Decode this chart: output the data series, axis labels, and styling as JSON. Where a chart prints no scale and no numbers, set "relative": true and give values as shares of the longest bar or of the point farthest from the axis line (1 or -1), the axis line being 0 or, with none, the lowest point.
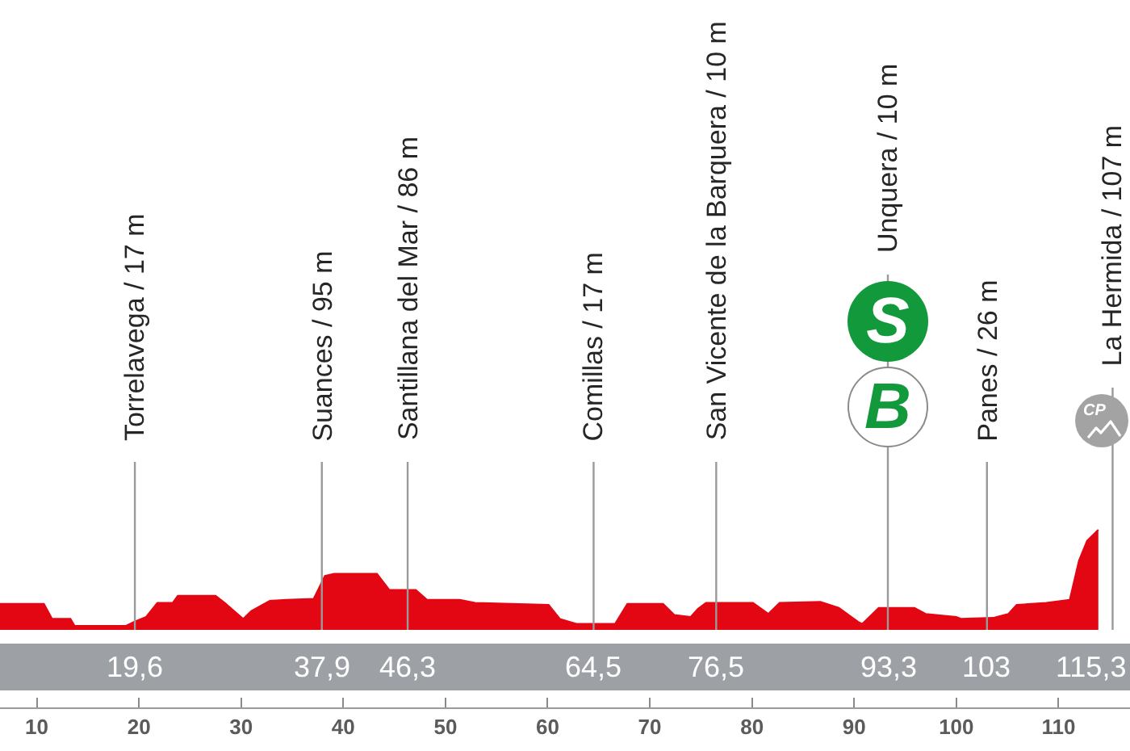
{
  "chart_data": {
    "type": "area",
    "relative": true,
    "x": [
      6.4,
      10.7,
      11.5,
      13.3,
      13.7,
      18.7,
      19.5,
      20.7,
      21.8,
      23.3,
      23.8,
      27.5,
      28.4,
      30.2,
      31.0,
      32.8,
      34.4,
      37.1,
      38.2,
      39.1,
      43.3,
      44.5,
      47.1,
      48.2,
      51.4,
      52.9,
      60.1,
      61.2,
      62.8,
      66.6,
      67.8,
      71.3,
      72.4,
      74.0,
      74.7,
      75.5,
      80.1,
      81.6,
      82.7,
      86.7,
      88.5,
      90.4,
      90.8,
      92.4,
      95.9,
      97.0,
      100.0,
      100.5,
      103.6,
      105.1,
      105.9,
      108.8,
      111.1,
      112.0,
      112.8,
      113.9
    ],
    "series": [
      {
        "color": "#e30613",
        "values": [
          0.26,
          0.26,
          0.11,
          0.11,
          0.04,
          0.04,
          0.08,
          0.13,
          0.27,
          0.27,
          0.34,
          0.34,
          0.27,
          0.11,
          0.19,
          0.29,
          0.3,
          0.31,
          0.54,
          0.56,
          0.56,
          0.4,
          0.4,
          0.3,
          0.3,
          0.27,
          0.25,
          0.11,
          0.06,
          0.06,
          0.26,
          0.26,
          0.15,
          0.13,
          0.21,
          0.27,
          0.27,
          0.16,
          0.27,
          0.28,
          0.22,
          0.08,
          0.06,
          0.22,
          0.22,
          0.16,
          0.13,
          0.11,
          0.12,
          0.16,
          0.25,
          0.27,
          0.3,
          0.69,
          0.89,
          1
        ]
      }
    ],
    "xlim": [
      6.4,
      117
    ],
    "xticks": [
      10,
      20,
      30,
      40,
      50,
      60,
      70,
      80,
      90,
      100,
      110
    ],
    "x2lim": [
      6.4,
      117
    ],
    "x2ticks": [
      {
        "value": 19.6,
        "label": "19,6"
      },
      {
        "value": 37.9,
        "label": "37,9"
      },
      {
        "value": 46.3,
        "label": "46,3"
      },
      {
        "value": 64.5,
        "label": "64,5"
      },
      {
        "value": 76.5,
        "label": "76,5"
      },
      {
        "value": 93.3,
        "label": "93,3"
      },
      103,
      {
        "value": 115.3,
        "label": "115,3"
      }
    ],
    "ref_lines": [
      {
        "axis": "x",
        "value": 19.6,
        "label": "Torrelavega / 17 m",
        "color": "#9a9a9a"
      },
      {
        "axis": "x",
        "value": 37.9,
        "label": "Suances / 95 m",
        "color": "#9a9a9a"
      },
      {
        "axis": "x",
        "value": 46.3,
        "label": "Santillana del Mar / 86 m",
        "color": "#9a9a9a"
      },
      {
        "axis": "x",
        "value": 64.5,
        "label": "Comillas / 17 m",
        "color": "#9a9a9a"
      },
      {
        "axis": "x",
        "value": 76.5,
        "label": "San Vicente de la Barquera / 10 m",
        "color": "#9a9a9a"
      },
      {
        "axis": "x",
        "value": 93.3,
        "label": "Unquera / 10 m",
        "color": "#9a9a9a"
      },
      {
        "axis": "x",
        "value": 103,
        "label": "Panes / 26 m",
        "color": "#9a9a9a"
      },
      {
        "axis": "x",
        "value": 115.3,
        "label": "La Hermida / 107 m",
        "color": "#9a9a9a"
      }
    ],
    "annotations": [
      "S",
      "B",
      "CP"
    ]
  }
}
